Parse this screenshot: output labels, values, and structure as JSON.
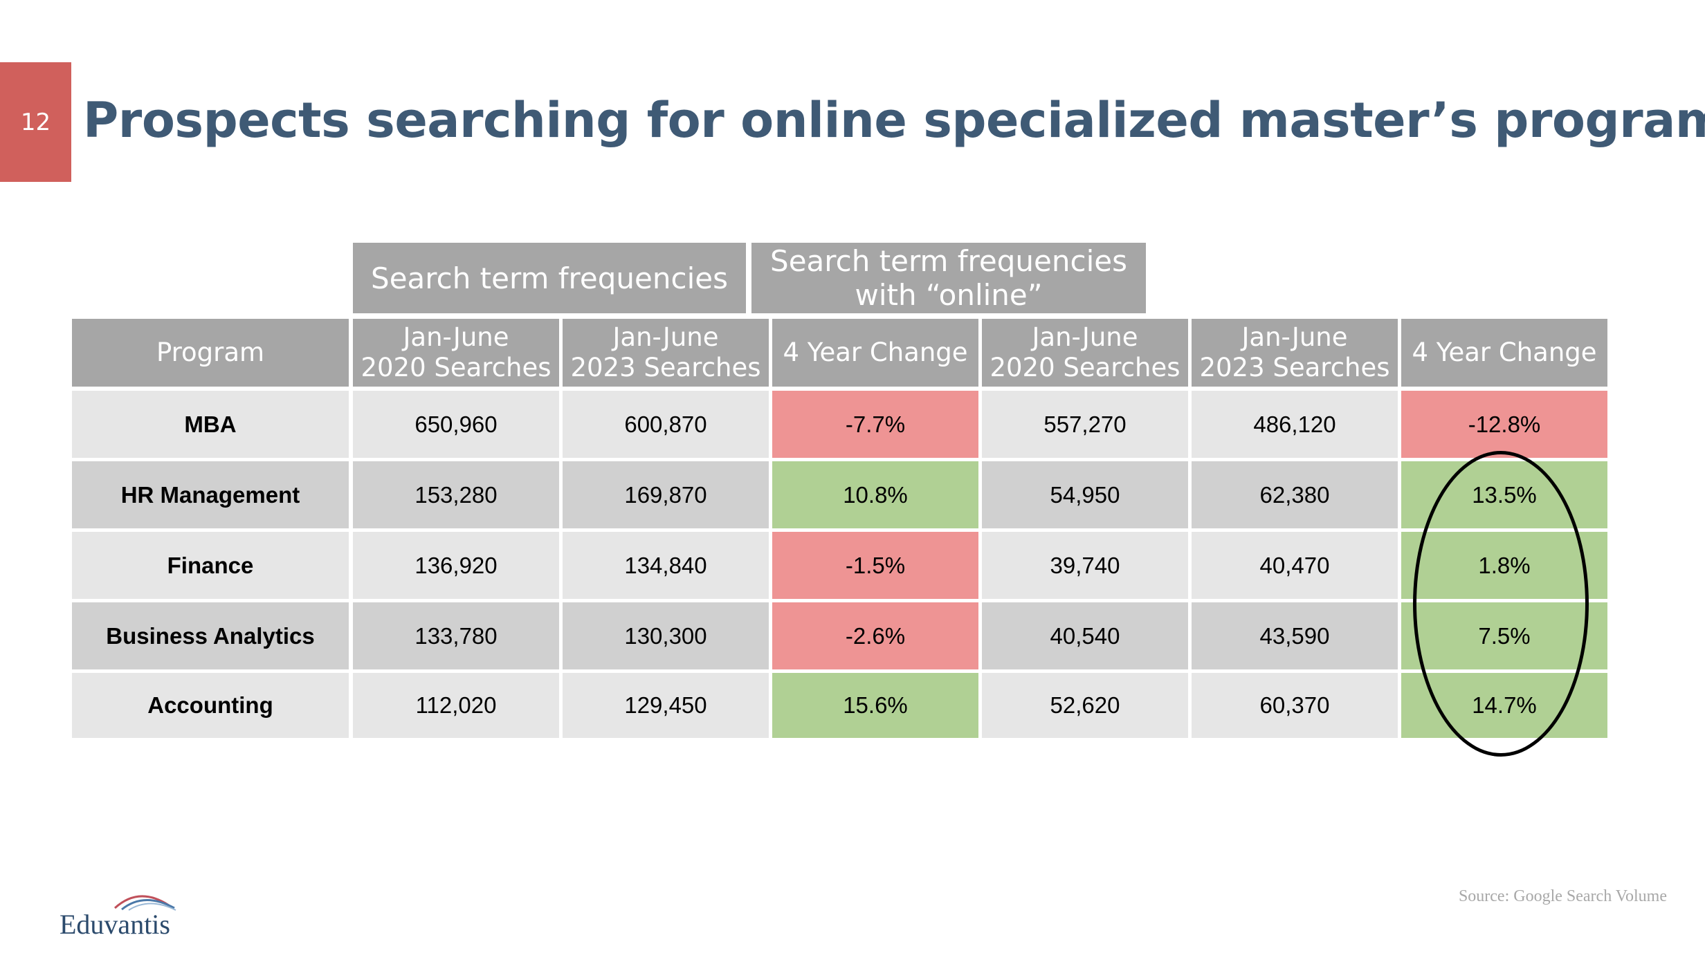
{
  "slide": {
    "number": "12",
    "title": "Prospects searching for online specialized master’s programs"
  },
  "table": {
    "group_headers": [
      "Search term frequencies",
      "Search term frequencies with “online”"
    ],
    "columns": [
      "Program",
      "Jan-June\n2020 Searches",
      "Jan-June\n2023 Searches",
      "4 Year Change",
      "Jan-June\n2020 Searches",
      "Jan-June\n2023 Searches",
      "4 Year Change"
    ],
    "rows": [
      {
        "program": "MBA",
        "s2020": "650,960",
        "s2023": "600,870",
        "change": "-7.7%",
        "o2020": "557,270",
        "o2023": "486,120",
        "ochange": "-12.8%"
      },
      {
        "program": "HR Management",
        "s2020": "153,280",
        "s2023": "169,870",
        "change": "10.8%",
        "o2020": "54,950",
        "o2023": "62,380",
        "ochange": "13.5%"
      },
      {
        "program": "Finance",
        "s2020": "136,920",
        "s2023": "134,840",
        "change": "-1.5%",
        "o2020": "39,740",
        "o2023": "40,470",
        "ochange": "1.8%"
      },
      {
        "program": "Business Analytics",
        "s2020": "133,780",
        "s2023": "130,300",
        "change": "-2.6%",
        "o2020": "40,540",
        "o2023": "43,590",
        "ochange": "7.5%"
      },
      {
        "program": "Accounting",
        "s2020": "112,020",
        "s2023": "129,450",
        "change": "15.6%",
        "o2020": "52,620",
        "o2023": "60,370",
        "ochange": "14.7%"
      }
    ]
  },
  "colors": {
    "title": "#3f5a75",
    "slide_number_bg": "#d0605c",
    "header_bg": "#a6a6a6",
    "row_light": "#e6e6e6",
    "row_dark": "#d0d0d0",
    "negative": "#ee9494",
    "positive": "#b0d094"
  },
  "footer": {
    "logo_text": "Eduvantis",
    "source": "Source: Google Search Volume"
  }
}
